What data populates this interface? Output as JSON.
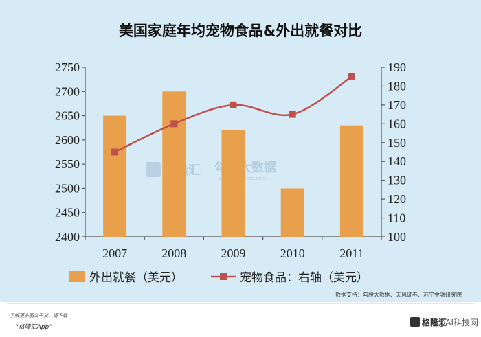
{
  "chart_data": {
    "type": "bar",
    "title": "美国家庭年均宠物食品&外出就餐对比",
    "categories": [
      "2007",
      "2008",
      "2009",
      "2010",
      "2011"
    ],
    "series": [
      {
        "name": "外出就餐（美元）",
        "kind": "bar",
        "axis": "left",
        "color": "#e8a04c",
        "values": [
          2650,
          2700,
          2620,
          2500,
          2630
        ]
      },
      {
        "name": "宠物食品：右轴（美元）",
        "kind": "line",
        "axis": "right",
        "color": "#c0504d",
        "values": [
          145,
          160,
          170,
          165,
          185
        ]
      }
    ],
    "y_left": {
      "min": 2400,
      "max": 2750,
      "step": 50,
      "ticks": [
        "2400",
        "2450",
        "2500",
        "2550",
        "2600",
        "2650",
        "2700",
        "2750"
      ]
    },
    "y_right": {
      "min": 100,
      "max": 190,
      "step": 10,
      "ticks": [
        "100",
        "110",
        "120",
        "130",
        "140",
        "150",
        "160",
        "170",
        "180",
        "190"
      ]
    },
    "grid": false,
    "legend": "bottom"
  },
  "source": "数据支持：勾股大数据、天风证券、苏宁金融研究院",
  "footer": {
    "line1": "了解更多图文干货，请下载",
    "app": "“格隆汇App”"
  },
  "watermarks": {
    "brand1": "格隆汇",
    "brand2": "勾股大数据",
    "brand2_url": "www.gogudata.com"
  },
  "brand_logo": "格隆汇",
  "corner_tag": "@AI科技网"
}
